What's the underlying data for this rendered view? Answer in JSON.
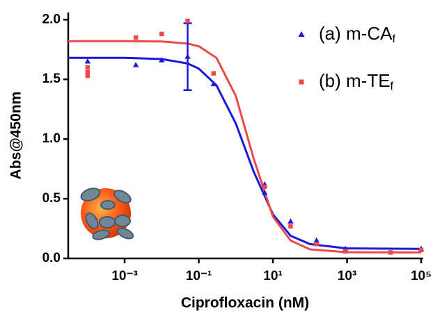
{
  "chart_data": {
    "type": "scatter",
    "x_label": "Ciprofloxacin (nM)",
    "y_label": "Abs@450nm",
    "xscale": "log",
    "xlim": [
      3e-05,
      100000
    ],
    "ylim": [
      0,
      2.06
    ],
    "xticks": [
      {
        "value": 0.001,
        "label": "10⁻³"
      },
      {
        "value": 0.1,
        "label": "10⁻¹"
      },
      {
        "value": 10,
        "label": "10¹"
      },
      {
        "value": 1000,
        "label": "10³"
      },
      {
        "value": 100000,
        "label": "10⁵"
      }
    ],
    "yticks": [
      {
        "value": 0,
        "label": "0.0"
      },
      {
        "value": 0.5,
        "label": "0.5"
      },
      {
        "value": 1,
        "label": "1.0"
      },
      {
        "value": 1.5,
        "label": "1.5"
      },
      {
        "value": 2,
        "label": "2.0"
      }
    ],
    "legend": "upper right",
    "series": [
      {
        "name": "(a) m-CA",
        "subscript": "f",
        "color": "#1a1adc",
        "marker": "triangle",
        "x": [
          0.0001,
          0.002,
          0.01,
          0.05,
          0.25,
          6,
          6,
          30,
          150,
          900,
          100000
        ],
        "values": [
          1.65,
          1.62,
          1.66,
          1.69,
          1.46,
          0.62,
          0.55,
          0.31,
          0.15,
          0.08,
          0.08
        ],
        "error": [
          null,
          null,
          null,
          0.28,
          null,
          null,
          null,
          null,
          null,
          null,
          null
        ],
        "fit": {
          "x": [
            3e-05,
            0.001,
            0.01,
            0.05,
            0.1,
            0.3,
            1,
            3,
            10,
            30,
            100,
            1000,
            100000
          ],
          "values": [
            1.68,
            1.68,
            1.67,
            1.633,
            1.59,
            1.45,
            1.13,
            0.73,
            0.37,
            0.19,
            0.12,
            0.084,
            0.08
          ]
        }
      },
      {
        "name": "(b) m-TE",
        "subscript": "f",
        "color": "#f04848",
        "marker": "square",
        "x": [
          0.0001,
          0.0001,
          0.0001,
          0.002,
          0.01,
          0.05,
          0.25,
          6,
          30,
          150,
          900,
          15000,
          100000
        ],
        "values": [
          1.6,
          1.56,
          1.53,
          1.85,
          1.88,
          1.99,
          1.55,
          0.6,
          0.27,
          0.12,
          0.06,
          0.05,
          0.07
        ],
        "fit": {
          "x": [
            3e-05,
            0.001,
            0.01,
            0.05,
            0.1,
            0.3,
            1,
            3,
            10,
            30,
            100,
            1000,
            100000
          ],
          "values": [
            1.82,
            1.82,
            1.817,
            1.8,
            1.777,
            1.68,
            1.36,
            0.84,
            0.35,
            0.15,
            0.076,
            0.052,
            0.05
          ]
        }
      }
    ]
  }
}
